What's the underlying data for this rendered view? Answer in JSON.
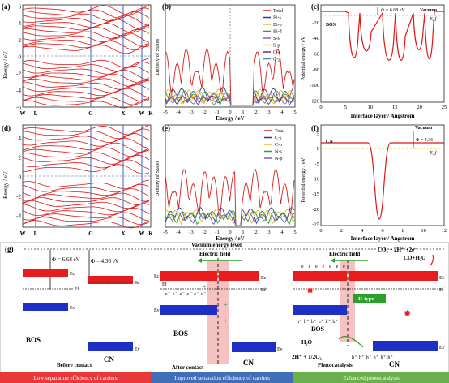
{
  "panels": {
    "a": {
      "label": "(a)",
      "ylabel": "Energy / eV",
      "yticks": [
        "6",
        "4",
        "2",
        "0",
        "-2",
        "-4",
        "-6"
      ],
      "kpoints": [
        "W",
        "L",
        "G",
        "X",
        "W",
        "K"
      ]
    },
    "b": {
      "label": "(b)",
      "ylabel": "Density of States",
      "xlabel": "Energy / eV",
      "xticks": [
        "-5",
        "-4",
        "-3",
        "-2",
        "-1",
        "0",
        "1",
        "2",
        "3",
        "4",
        "5"
      ],
      "legend": [
        {
          "name": "Total",
          "color": "#d81e1e"
        },
        {
          "name": "Bi-s",
          "color": "#2b3a9e"
        },
        {
          "name": "Bi-p",
          "color": "#e6b82a"
        },
        {
          "name": "Bi-d",
          "color": "#2a9e2a"
        },
        {
          "name": "S-s",
          "color": "#9a60c0"
        },
        {
          "name": "S-p",
          "color": "#f0c020"
        },
        {
          "name": "O-s",
          "color": "#7a2a7a"
        },
        {
          "name": "O-p",
          "color": "#5a7fb0"
        }
      ]
    },
    "c": {
      "label": "(c)",
      "ylabel": "Potential energy / eV",
      "xlabel": "Interface layer / Angstrom",
      "xticks": [
        "0",
        "5",
        "10",
        "15",
        "20",
        "25"
      ],
      "yticks": [
        "0",
        "-20",
        "-40",
        "-60",
        "-80",
        "-100",
        "-120"
      ],
      "phi": "Φ = 6.68 eV",
      "vacuum": "Vacuum",
      "ef": "E_f",
      "tag": "BOS"
    },
    "d": {
      "label": "(d)",
      "ylabel": "Energy / eV",
      "yticks": [
        "4",
        "2",
        "0",
        "-2",
        "-4"
      ],
      "kpoints": [
        "W",
        "L",
        "G",
        "X",
        "W",
        "K"
      ]
    },
    "e": {
      "label": "(e)",
      "ylabel": "Density of States",
      "xlabel": "Energy / eV",
      "xticks": [
        "-5",
        "-4",
        "-3",
        "-2",
        "-1",
        "0",
        "1",
        "2",
        "3",
        "4",
        "5"
      ],
      "legend": [
        {
          "name": "Total",
          "color": "#d81e1e"
        },
        {
          "name": "C-s",
          "color": "#2b3a9e"
        },
        {
          "name": "C-p",
          "color": "#e6b82a"
        },
        {
          "name": "N-s",
          "color": "#2a9e2a"
        },
        {
          "name": "N-p",
          "color": "#7a5ab0"
        }
      ]
    },
    "f": {
      "label": "(f)",
      "ylabel": "Potential energy / eV",
      "xlabel": "Interface layer / Angstrom",
      "xticks": [
        "0",
        "2",
        "4",
        "6",
        "8",
        "10",
        "12"
      ],
      "yticks": [
        "5",
        "0",
        "-5",
        "-10",
        "-15",
        "-20",
        "-25"
      ],
      "phi": "Φ = 4.36",
      "vacuum": "Vacuum",
      "ef": "E_f",
      "tag": "CN"
    },
    "g": {
      "label": "(g)",
      "vacuum_level": "Vacuum energy level",
      "phi_bos": "Φ = 6.68 eV",
      "phi_cn": "Φ = 4.36 eV",
      "ec": "Ec",
      "ef": "Ef",
      "ev": "Ev",
      "bos": "BOS",
      "cn": "CN",
      "before": "Before contact",
      "after": "After contact",
      "efield": "Electric field",
      "electrons": "e⁻ e⁻ e⁻ e⁻ e⁻ e⁻",
      "electrons2": "e⁻ e⁻ e⁻ e⁻ e⁻ e⁻ e⁻",
      "holes": "h⁺ h⁺ h⁺ h⁺ h⁺ h⁺",
      "holes2": "h⁺ h⁺ h⁺ h⁺ h⁺ h⁺",
      "reaction1": "CO₂ + 2H⁺ +2e⁻",
      "reaction2": "CO+H₂O",
      "water": "H₂O",
      "oxygen": "2H⁺ + 1/2O₂",
      "photocatalysis": "Photocatalysis",
      "ii_type": "II-type",
      "bars": [
        {
          "text": "Low separation efficiency of carriers",
          "color": "#e8383a"
        },
        {
          "text": "Improved separation efficiency of carriers",
          "color": "#3f6fb8"
        },
        {
          "text": "Enhanced photocatalysis",
          "color": "#6ab04c"
        }
      ]
    }
  }
}
